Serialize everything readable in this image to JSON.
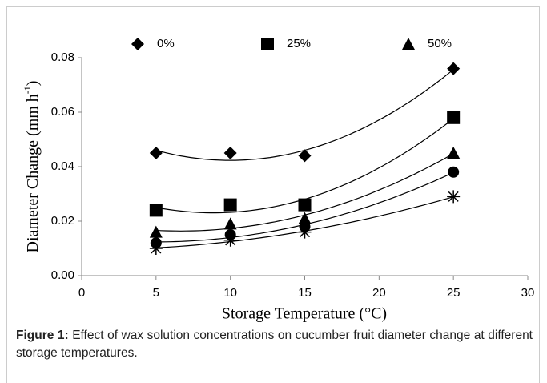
{
  "chart_data": {
    "type": "scatter",
    "x_label": "Storage Temperature (°C)",
    "y_label": [
      "Diameter Change (mm h",
      "-1",
      ")"
    ],
    "x": [
      5,
      10,
      15,
      25
    ],
    "series": [
      {
        "name": "0%",
        "marker": "diamond",
        "color": "#000000",
        "values": [
          0.045,
          0.045,
          0.044,
          0.076
        ]
      },
      {
        "name": "25%",
        "marker": "square",
        "color": "#000000",
        "values": [
          0.024,
          0.026,
          0.026,
          0.058
        ]
      },
      {
        "name": "50%",
        "marker": "triangle",
        "color": "#000000",
        "values": [
          0.016,
          0.019,
          0.021,
          0.045
        ]
      },
      {
        "marker": "circle",
        "color": "#000000",
        "values": [
          0.012,
          0.015,
          0.018,
          0.038
        ]
      },
      {
        "marker": "star",
        "color": "#000000",
        "values": [
          0.01,
          0.013,
          0.016,
          0.029
        ]
      }
    ],
    "trendline": "poly2",
    "legend": "top",
    "xlim": [
      0,
      30
    ],
    "xticks": [
      0,
      5,
      10,
      15,
      20,
      25,
      30
    ],
    "ylim": [
      0,
      0.08
    ],
    "yticks": [
      {
        "value": 0,
        "label": "0.00"
      },
      0.02,
      0.04,
      0.06,
      0.08
    ],
    "grid": false
  },
  "caption": {
    "label": "Figure 1:",
    "text": " Effect of wax solution concentrations on cucumber fruit diameter change at different storage temperatures."
  }
}
